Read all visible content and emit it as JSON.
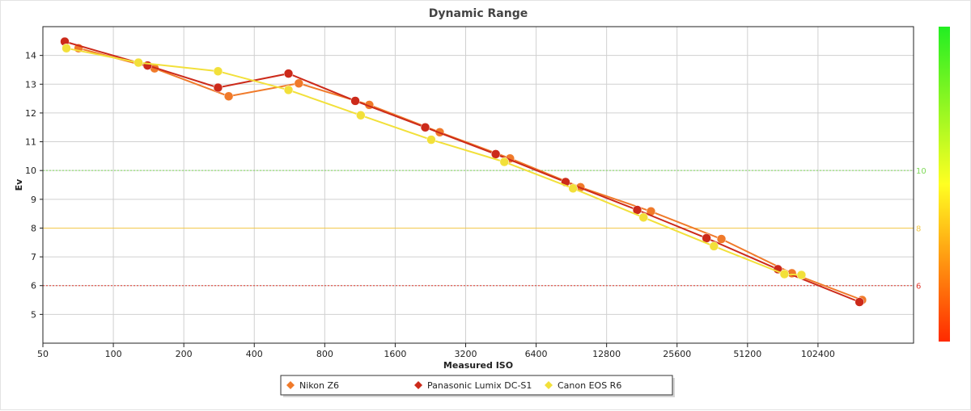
{
  "chart_data": {
    "type": "line",
    "title": "Dynamic Range",
    "xlabel": "Measured ISO",
    "ylabel": "Ev",
    "x_scale": "log2",
    "xlim": [
      50,
      262144
    ],
    "ylim": [
      4,
      15
    ],
    "x_ticks": [
      50,
      100,
      200,
      400,
      800,
      1600,
      3200,
      6400,
      12800,
      25600,
      51200,
      102400
    ],
    "y_ticks": [
      5,
      6,
      7,
      8,
      9,
      10,
      11,
      12,
      13,
      14
    ],
    "reference_lines": [
      {
        "y": 10,
        "label": "10",
        "color": "#7ed957",
        "style": "dotted"
      },
      {
        "y": 8,
        "label": "8",
        "color": "#f2c94c",
        "style": "solid"
      },
      {
        "y": 6,
        "label": "6",
        "color": "#e03a2f",
        "style": "dotted"
      }
    ],
    "color_scale_colors": [
      "#22ee22",
      "#ffff22",
      "#ff2a00"
    ],
    "series": [
      {
        "name": "Nikon Z6",
        "color": "#f07a2a",
        "x": [
          71,
          150,
          311,
          620,
          1240,
          2480,
          4950,
          9900,
          19800,
          39600,
          79200,
          158000
        ],
        "y": [
          14.25,
          13.55,
          12.58,
          13.03,
          12.28,
          11.33,
          10.42,
          9.42,
          8.58,
          7.62,
          6.43,
          5.5
        ]
      },
      {
        "name": "Panasonic Lumix DC-S1",
        "color": "#cc2a1a",
        "x": [
          62,
          140,
          280,
          560,
          1080,
          2150,
          4300,
          8550,
          17300,
          34200,
          69000,
          154000
        ],
        "y": [
          14.48,
          13.65,
          12.88,
          13.37,
          12.42,
          11.5,
          10.57,
          9.6,
          8.63,
          7.65,
          6.57,
          5.43
        ]
      },
      {
        "name": "Canon EOS R6",
        "color": "#f2e03a",
        "x": [
          63,
          128,
          280,
          560,
          1140,
          2280,
          4680,
          9200,
          18400,
          36800,
          73600,
          87000
        ],
        "y": [
          14.25,
          13.75,
          13.45,
          12.8,
          11.92,
          11.07,
          10.3,
          9.38,
          8.37,
          7.37,
          6.4,
          6.37
        ]
      }
    ]
  }
}
